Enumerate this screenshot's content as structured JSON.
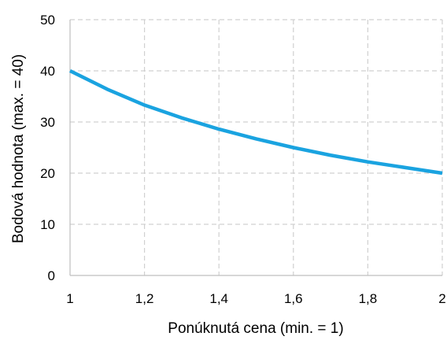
{
  "chart_data": {
    "type": "line",
    "xlabel": "Ponúknutá cena (min. = 1)",
    "ylabel": "Bodová hodnota (max. = 40)",
    "xlim": [
      1,
      2
    ],
    "ylim": [
      0,
      50
    ],
    "x_ticks": [
      "1",
      "1,2",
      "1,4",
      "1,6",
      "1,8",
      "2"
    ],
    "y_ticks": [
      "0",
      "10",
      "20",
      "30",
      "40",
      "50"
    ],
    "grid": true,
    "legend": "none",
    "series": [
      {
        "color": "#1aa3e0",
        "x": [
          1.0,
          1.1,
          1.2,
          1.3,
          1.4,
          1.5,
          1.6,
          1.7,
          1.8,
          1.9,
          2.0
        ],
        "y": [
          40.0,
          36.4,
          33.3,
          30.8,
          28.6,
          26.7,
          25.0,
          23.5,
          22.2,
          21.1,
          20.0
        ]
      }
    ]
  }
}
